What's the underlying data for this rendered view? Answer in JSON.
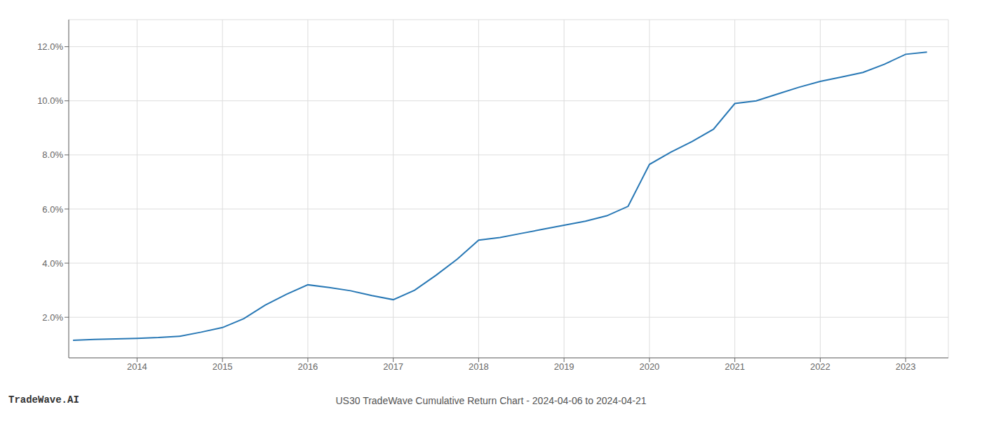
{
  "chart_data": {
    "type": "line",
    "title": "US30 TradeWave Cumulative Return Chart - 2024-04-06 to 2024-04-21",
    "annotations": [
      "TradeWave.AI"
    ],
    "x": [
      2013.25,
      2013.5,
      2013.75,
      2014.0,
      2014.25,
      2014.5,
      2014.75,
      2015.0,
      2015.25,
      2015.5,
      2015.75,
      2016.0,
      2016.25,
      2016.5,
      2016.75,
      2017.0,
      2017.25,
      2017.5,
      2017.75,
      2018.0,
      2018.25,
      2018.5,
      2018.75,
      2019.0,
      2019.25,
      2019.5,
      2019.75,
      2020.0,
      2020.25,
      2020.5,
      2020.75,
      2021.0,
      2021.25,
      2021.5,
      2021.75,
      2022.0,
      2022.25,
      2022.5,
      2022.75,
      2023.0,
      2023.25
    ],
    "values": [
      1.15,
      1.18,
      1.2,
      1.22,
      1.25,
      1.3,
      1.45,
      1.62,
      1.95,
      2.45,
      2.85,
      3.2,
      3.1,
      2.98,
      2.8,
      2.65,
      3.0,
      3.55,
      4.15,
      4.85,
      4.95,
      5.1,
      5.25,
      5.4,
      5.55,
      5.75,
      6.1,
      7.65,
      8.1,
      8.5,
      8.95,
      9.9,
      10.0,
      10.25,
      10.5,
      10.72,
      10.88,
      11.05,
      11.35,
      11.72,
      11.8
    ],
    "color": "#2878b5",
    "xlim": [
      2013.2,
      2023.5
    ],
    "ylim": [
      0.5,
      13.0
    ],
    "xticks": [
      2014,
      2015,
      2016,
      2017,
      2018,
      2019,
      2020,
      2021,
      2022,
      2023
    ],
    "yticks": [
      {
        "value": 2.0,
        "label": "2.0%"
      },
      {
        "value": 4.0,
        "label": "4.0%"
      },
      {
        "value": 6.0,
        "label": "6.0%"
      },
      {
        "value": 8.0,
        "label": "8.0%"
      },
      {
        "value": 10.0,
        "label": "10.0%"
      },
      {
        "value": 12.0,
        "label": "12.0%"
      }
    ],
    "grid": true
  }
}
